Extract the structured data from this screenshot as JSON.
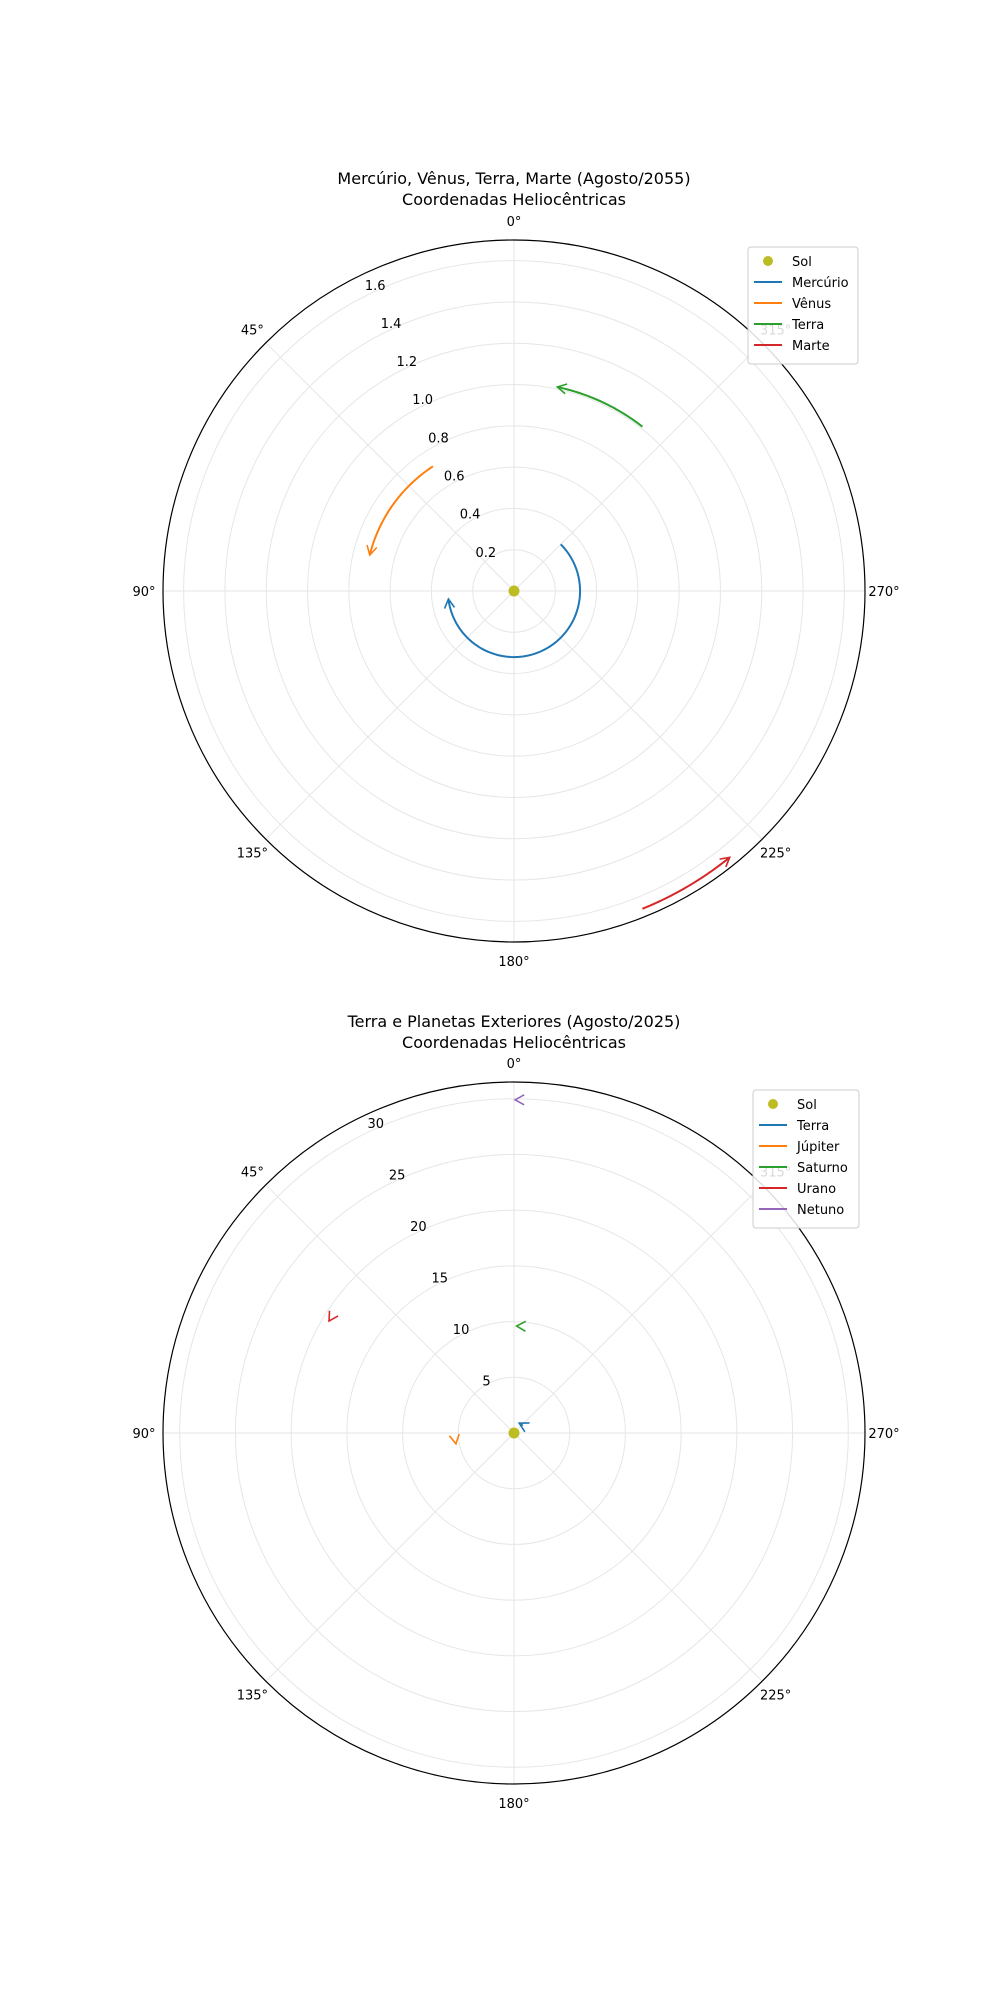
{
  "chart_data": [
    {
      "type": "polar-line",
      "title_line1": "Mercúrio, Vênus, Terra, Marte (Agosto/2055)",
      "title_line2": "Coordenadas Heliocêntricas",
      "theta_zero": "top",
      "theta_direction": "counterclockwise",
      "theta_ticks": [
        "0°",
        "45°",
        "90°",
        "135°",
        "180°",
        "225°",
        "270°",
        "315°"
      ],
      "r_ticks": [
        0.2,
        0.4,
        0.6,
        0.8,
        1.0,
        1.2,
        1.4,
        1.6
      ],
      "r_tick_labels": [
        "0.2",
        "0.4",
        "0.6",
        "0.8",
        "1.0",
        "1.2",
        "1.4",
        "1.6"
      ],
      "r_max": 1.7,
      "grid": true,
      "legend_position": "top-right",
      "sun": {
        "name": "Sol",
        "color": "#bcbd22"
      },
      "series": [
        {
          "name": "Mercúrio",
          "color": "#1f77b4",
          "r": 0.32,
          "theta_start": 315,
          "theta_end": 97,
          "arrow": true
        },
        {
          "name": "Vênus",
          "color": "#ff7f0e",
          "r": 0.72,
          "theta_start": 33,
          "theta_end": 76,
          "arrow": true
        },
        {
          "name": "Terra",
          "color": "#2ca02c",
          "r": 1.01,
          "theta_start": 322,
          "theta_end": 348,
          "arrow": true
        },
        {
          "name": "Marte",
          "color": "#d62728",
          "r": 1.66,
          "theta_start": 202,
          "theta_end": 219,
          "arrow": true
        }
      ]
    },
    {
      "type": "polar-line",
      "title_line1": "Terra e Planetas Exteriores (Agosto/2025)",
      "title_line2": "Coordenadas Heliocêntricas",
      "theta_zero": "top",
      "theta_direction": "counterclockwise",
      "theta_ticks": [
        "0°",
        "45°",
        "90°",
        "135°",
        "180°",
        "225°",
        "270°",
        "315°"
      ],
      "r_ticks": [
        5,
        10,
        15,
        20,
        25,
        30
      ],
      "r_tick_labels": [
        "5",
        "10",
        "15",
        "20",
        "25",
        "30"
      ],
      "r_max": 31.5,
      "grid": true,
      "legend_position": "top-right",
      "sun": {
        "name": "Sol",
        "color": "#bcbd22"
      },
      "series": [
        {
          "name": "Terra",
          "color": "#1f77b4",
          "r": 1.0,
          "theta_start": 310,
          "theta_end": 332,
          "arrow": true
        },
        {
          "name": "Júpiter",
          "color": "#ff7f0e",
          "r": 5.3,
          "theta_start": 99.5,
          "theta_end": 100.5,
          "arrow": true
        },
        {
          "name": "Saturno",
          "color": "#2ca02c",
          "r": 9.6,
          "theta_start": 358,
          "theta_end": 358.6,
          "arrow": true
        },
        {
          "name": "Urano",
          "color": "#d62728",
          "r": 19.4,
          "theta_start": 58.6,
          "theta_end": 58.8,
          "arrow": true
        },
        {
          "name": "Netuno",
          "color": "#9467bd",
          "r": 29.9,
          "theta_start": 359.6,
          "theta_end": 359.8,
          "arrow": true
        }
      ]
    }
  ]
}
